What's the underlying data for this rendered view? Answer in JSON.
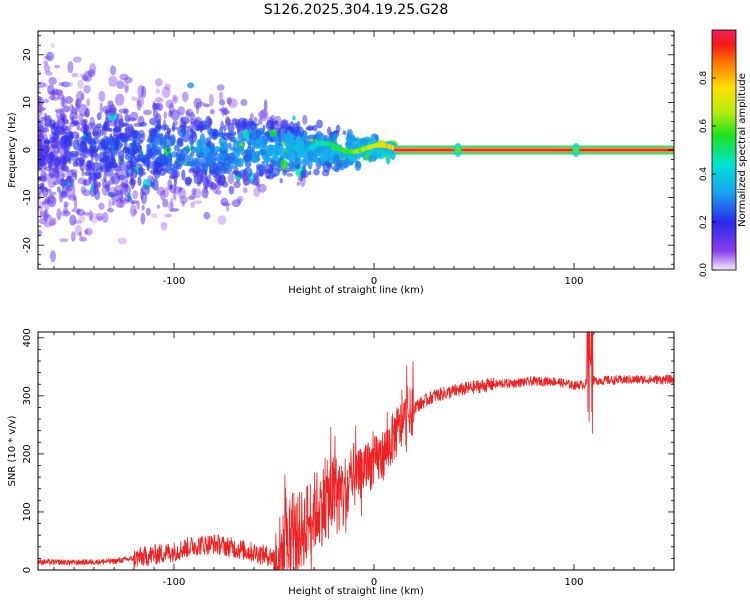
{
  "title": "S126.2025.304.19.25.G28",
  "chart_data": [
    {
      "type": "heatmap",
      "name": "spectrogram",
      "xlabel": "Height of straight line (km)",
      "ylabel": "Frequency (Hz)",
      "xlim": [
        -168,
        150
      ],
      "ylim": [
        -25,
        25
      ],
      "xticks": [
        -100,
        0,
        100
      ],
      "yticks": [
        -20,
        -10,
        0,
        10,
        20
      ],
      "colorbar": {
        "label": "Normalized spectral amplitude",
        "range": [
          0,
          1
        ],
        "ticks": [
          0.0,
          0.2,
          0.4,
          0.6,
          0.8
        ]
      },
      "features": {
        "scatter_region_km": [
          -168,
          10
        ],
        "coherent_line_km": [
          10,
          150
        ],
        "coherent_line_freq_hz": 0,
        "spike_heights_km": [
          42,
          101
        ]
      }
    },
    {
      "type": "line",
      "name": "snr",
      "xlabel": "Height of straight line (km)",
      "ylabel": "SNR (10 * v/v)",
      "xlim": [
        -168,
        150
      ],
      "ylim": [
        0,
        410
      ],
      "xticks": [
        -100,
        0,
        100
      ],
      "yticks": [
        0,
        100,
        200,
        300,
        400
      ],
      "color": "#ee2222",
      "series": [
        {
          "name": "SNR",
          "x": [
            -168,
            -150,
            -130,
            -120,
            -110,
            -100,
            -90,
            -80,
            -70,
            -60,
            -50,
            -45,
            -40,
            -35,
            -30,
            -25,
            -20,
            -15,
            -10,
            -5,
            0,
            5,
            10,
            15,
            20,
            30,
            40,
            50,
            60,
            70,
            80,
            90,
            100,
            105,
            108,
            110,
            120,
            130,
            140,
            150
          ],
          "values": [
            14,
            13,
            15,
            20,
            26,
            32,
            42,
            45,
            38,
            30,
            22,
            30,
            52,
            75,
            100,
            115,
            130,
            128,
            150,
            175,
            185,
            200,
            230,
            255,
            280,
            300,
            308,
            315,
            320,
            322,
            325,
            325,
            318,
            320,
            325,
            326,
            327,
            328,
            328,
            328
          ]
        }
      ],
      "annotations": {
        "spike_at_km": 108,
        "spike_max": 410,
        "spike_min": 235
      }
    }
  ]
}
